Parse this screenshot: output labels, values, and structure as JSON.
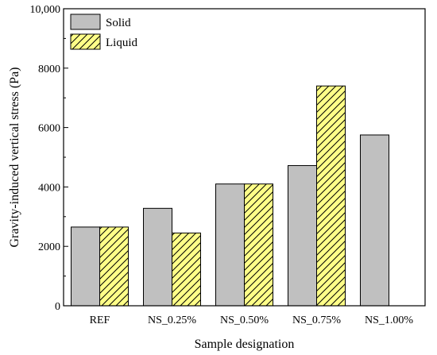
{
  "chart_data": {
    "type": "bar",
    "xlabel": "Sample designation",
    "ylabel": "Gravity-induced vertical stress (Pa)",
    "ylim": [
      0,
      10000
    ],
    "yticks": [
      0,
      2000,
      4000,
      6000,
      8000,
      10000
    ],
    "ytick_labels": [
      "0",
      "2000",
      "4000",
      "6000",
      "8000",
      "10,000"
    ],
    "categories": [
      "REF",
      "NS_0.25%",
      "NS_0.50%",
      "NS_0.75%",
      "NS_1.00%"
    ],
    "legend_position": "top-left",
    "grid": false,
    "series": [
      {
        "name": "Solid",
        "values": [
          2650,
          3280,
          4100,
          4720,
          5750
        ],
        "color": "#c0c0c0",
        "pattern": "none"
      },
      {
        "name": "Liquid",
        "values": [
          2650,
          2450,
          4100,
          7400,
          null
        ],
        "color": "#ffff88",
        "pattern": "hatch"
      }
    ]
  }
}
